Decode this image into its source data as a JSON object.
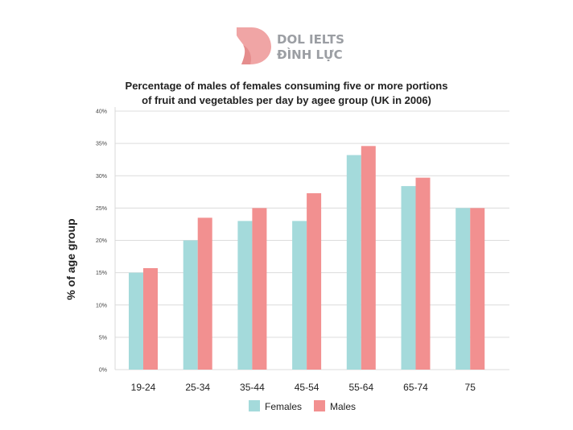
{
  "brand": {
    "line1": "DOL IELTS",
    "line2": "ĐÌNH LỰC",
    "logo_color": "#f0a5a5",
    "text_color": "#9b9ea3"
  },
  "chart_data": {
    "type": "bar",
    "title_lines": [
      "Percentage of males of females consuming five or more portions",
      "of fruit and vegetables per day by agee group (UK in 2006)"
    ],
    "xlabel": "",
    "ylabel": "% of age group",
    "ylim": [
      0,
      40
    ],
    "yticks": [
      "0%",
      "5%",
      "10%",
      "15%",
      "20%",
      "25%",
      "30%",
      "35%",
      "40%"
    ],
    "categories": [
      "19-24",
      "25-34",
      "35-44",
      "45-54",
      "55-64",
      "65-74",
      "75"
    ],
    "series": [
      {
        "name": "Females",
        "color": "#a4dadb",
        "values": [
          15,
          20,
          23,
          23,
          33.2,
          28.4,
          25
        ]
      },
      {
        "name": "Males",
        "color": "#f29090",
        "values": [
          15.7,
          23.5,
          25,
          27.3,
          34.6,
          29.7,
          25
        ]
      }
    ],
    "grid": true,
    "legend_position": "bottom"
  }
}
